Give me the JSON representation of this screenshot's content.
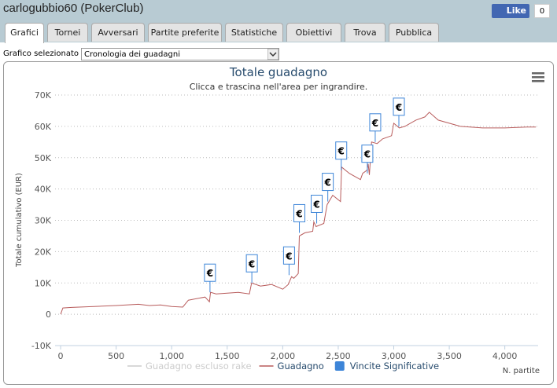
{
  "header": {
    "title": "carlogubbio60 (PokerClub)",
    "like": "Like",
    "like_count": "0"
  },
  "tabs": [
    "Grafici",
    "Tornei",
    "Avversari",
    "Partite preferite",
    "Statistiche",
    "Obiettivi",
    "Trova",
    "Pubblica"
  ],
  "selector": {
    "label": "Grafico selezionato",
    "value": "Cronologia dei guadagni"
  },
  "chart_data": {
    "type": "line",
    "title": "Totale guadagno",
    "subtitle": "Clicca e trascina nell'area per ingrandire.",
    "y_label": "Totale cumulativo (EUR)",
    "x_label": "N. partite",
    "xlim": [
      -50,
      4300
    ],
    "ylim": [
      -10000,
      70000
    ],
    "xticks": [
      0,
      500,
      {
        "value": 1000,
        "label": "1,000"
      },
      {
        "value": 1500,
        "label": "1,500"
      },
      {
        "value": 2000,
        "label": "2,000"
      },
      {
        "value": 2500,
        "label": "2,500"
      },
      {
        "value": 3000,
        "label": "3,000"
      },
      {
        "value": 3500,
        "label": "3,500"
      },
      {
        "value": 4000,
        "label": "4,000"
      }
    ],
    "yticks": [
      {
        "value": -10000,
        "label": "-10K"
      },
      0,
      {
        "value": 10000,
        "label": "10K"
      },
      {
        "value": 20000,
        "label": "20K"
      },
      {
        "value": 30000,
        "label": "30K"
      },
      {
        "value": 40000,
        "label": "40K"
      },
      {
        "value": 50000,
        "label": "50K"
      },
      {
        "value": 60000,
        "label": "60K"
      },
      {
        "value": 70000,
        "label": "70K"
      }
    ],
    "grid": true,
    "series": [
      {
        "name": "Guadagno escluso rake",
        "color": "#cccccc",
        "visible": false
      },
      {
        "name": "Guadagno",
        "color": "#b85c5c",
        "x": [
          0,
          20,
          100,
          300,
          500,
          700,
          800,
          900,
          1000,
          1100,
          1150,
          1300,
          1340,
          1350,
          1400,
          1600,
          1700,
          1720,
          1800,
          1900,
          2000,
          2050,
          2080,
          2100,
          2140,
          2150,
          2200,
          2270,
          2280,
          2300,
          2370,
          2400,
          2450,
          2520,
          2530,
          2600,
          2650,
          2700,
          2720,
          2760,
          2770,
          2780,
          2800,
          2850,
          2900,
          2980,
          3000,
          3050,
          3100,
          3200,
          3280,
          3320,
          3400,
          3600,
          3800,
          4000,
          4200,
          4280
        ],
        "values": [
          0,
          2000,
          2200,
          2500,
          2800,
          3200,
          2800,
          3000,
          2500,
          2300,
          4500,
          5500,
          4000,
          7000,
          6500,
          7000,
          6500,
          10000,
          9000,
          9500,
          8000,
          9500,
          12000,
          11500,
          13000,
          25000,
          26000,
          26500,
          29500,
          28000,
          29000,
          35000,
          38000,
          36000,
          47000,
          45000,
          44000,
          43000,
          45000,
          46000,
          48000,
          44500,
          55000,
          54500,
          56000,
          57000,
          61000,
          59500,
          60000,
          62000,
          63000,
          64500,
          62000,
          60000,
          59500,
          59500,
          59800,
          59800
        ]
      },
      {
        "name": "Vincite Significative",
        "color": "#3d85d8",
        "type": "flags",
        "x": [
          1345,
          1722,
          2057,
          2150,
          2306,
          2406,
          2527,
          2762,
          2833,
          3046
        ],
        "values": [
          7000,
          10000,
          12500,
          26000,
          29000,
          36000,
          46000,
          45000,
          55000,
          60000
        ],
        "labels": [
          "€",
          "€",
          "€",
          "€",
          "€",
          "€",
          "€",
          "€",
          "€",
          "€"
        ]
      }
    ]
  }
}
